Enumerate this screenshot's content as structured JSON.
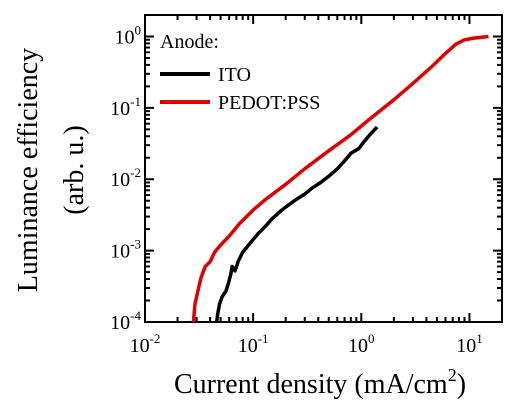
{
  "chart_data": {
    "type": "line",
    "title": "",
    "xlabel": "Current density (mA/cm",
    "xlabel_sup": "2",
    "xlabel_end": ")",
    "ylabel_line1": "Luminance efficiency",
    "ylabel_line2": "(arb. u.)",
    "xscale": "log",
    "yscale": "log",
    "xlim": [
      0.01,
      20
    ],
    "ylim": [
      0.0001,
      2
    ],
    "x_ticks": [
      {
        "value": 0.01,
        "base": "10",
        "exp": "-2"
      },
      {
        "value": 0.1,
        "base": "10",
        "exp": "-1"
      },
      {
        "value": 1,
        "base": "10",
        "exp": "0"
      },
      {
        "value": 10,
        "base": "10",
        "exp": "1"
      }
    ],
    "y_ticks": [
      {
        "value": 0.0001,
        "base": "10",
        "exp": "-4"
      },
      {
        "value": 0.001,
        "base": "10",
        "exp": "-3"
      },
      {
        "value": 0.01,
        "base": "10",
        "exp": "-2"
      },
      {
        "value": 0.1,
        "base": "10",
        "exp": "-1"
      },
      {
        "value": 1,
        "base": "10",
        "exp": "0"
      }
    ],
    "legend_title": "Anode:",
    "legend_position": "top-left",
    "grid": false,
    "series": [
      {
        "name": "ITO",
        "color": "#000000",
        "points": [
          [
            0.046,
            0.0001
          ],
          [
            0.047,
            0.00013
          ],
          [
            0.049,
            0.00018
          ],
          [
            0.052,
            0.00023
          ],
          [
            0.056,
            0.00027
          ],
          [
            0.059,
            0.00035
          ],
          [
            0.062,
            0.00046
          ],
          [
            0.064,
            0.0006
          ],
          [
            0.068,
            0.00052
          ],
          [
            0.073,
            0.00072
          ],
          [
            0.08,
            0.00095
          ],
          [
            0.095,
            0.0013
          ],
          [
            0.11,
            0.0017
          ],
          [
            0.13,
            0.0022
          ],
          [
            0.15,
            0.0028
          ],
          [
            0.18,
            0.0036
          ],
          [
            0.21,
            0.0043
          ],
          [
            0.25,
            0.0052
          ],
          [
            0.3,
            0.0062
          ],
          [
            0.35,
            0.0075
          ],
          [
            0.42,
            0.009
          ],
          [
            0.5,
            0.011
          ],
          [
            0.6,
            0.014
          ],
          [
            0.7,
            0.018
          ],
          [
            0.8,
            0.023
          ],
          [
            0.95,
            0.027
          ],
          [
            1.05,
            0.033
          ],
          [
            1.2,
            0.042
          ],
          [
            1.4,
            0.054
          ]
        ]
      },
      {
        "name": "PEDOT:PSS",
        "color": "#e00000",
        "points": [
          [
            0.028,
            0.0001
          ],
          [
            0.029,
            0.00018
          ],
          [
            0.031,
            0.00028
          ],
          [
            0.033,
            0.00042
          ],
          [
            0.036,
            0.0006
          ],
          [
            0.04,
            0.0007
          ],
          [
            0.044,
            0.00095
          ],
          [
            0.05,
            0.0012
          ],
          [
            0.06,
            0.0016
          ],
          [
            0.075,
            0.0024
          ],
          [
            0.1,
            0.0037
          ],
          [
            0.13,
            0.0052
          ],
          [
            0.2,
            0.0085
          ],
          [
            0.3,
            0.014
          ],
          [
            0.5,
            0.025
          ],
          [
            0.8,
            0.042
          ],
          [
            1.2,
            0.07
          ],
          [
            2,
            0.13
          ],
          [
            3,
            0.22
          ],
          [
            4.5,
            0.38
          ],
          [
            6,
            0.58
          ],
          [
            7.5,
            0.78
          ],
          [
            9,
            0.9
          ],
          [
            11,
            0.95
          ],
          [
            15,
            1.0
          ]
        ]
      }
    ]
  }
}
